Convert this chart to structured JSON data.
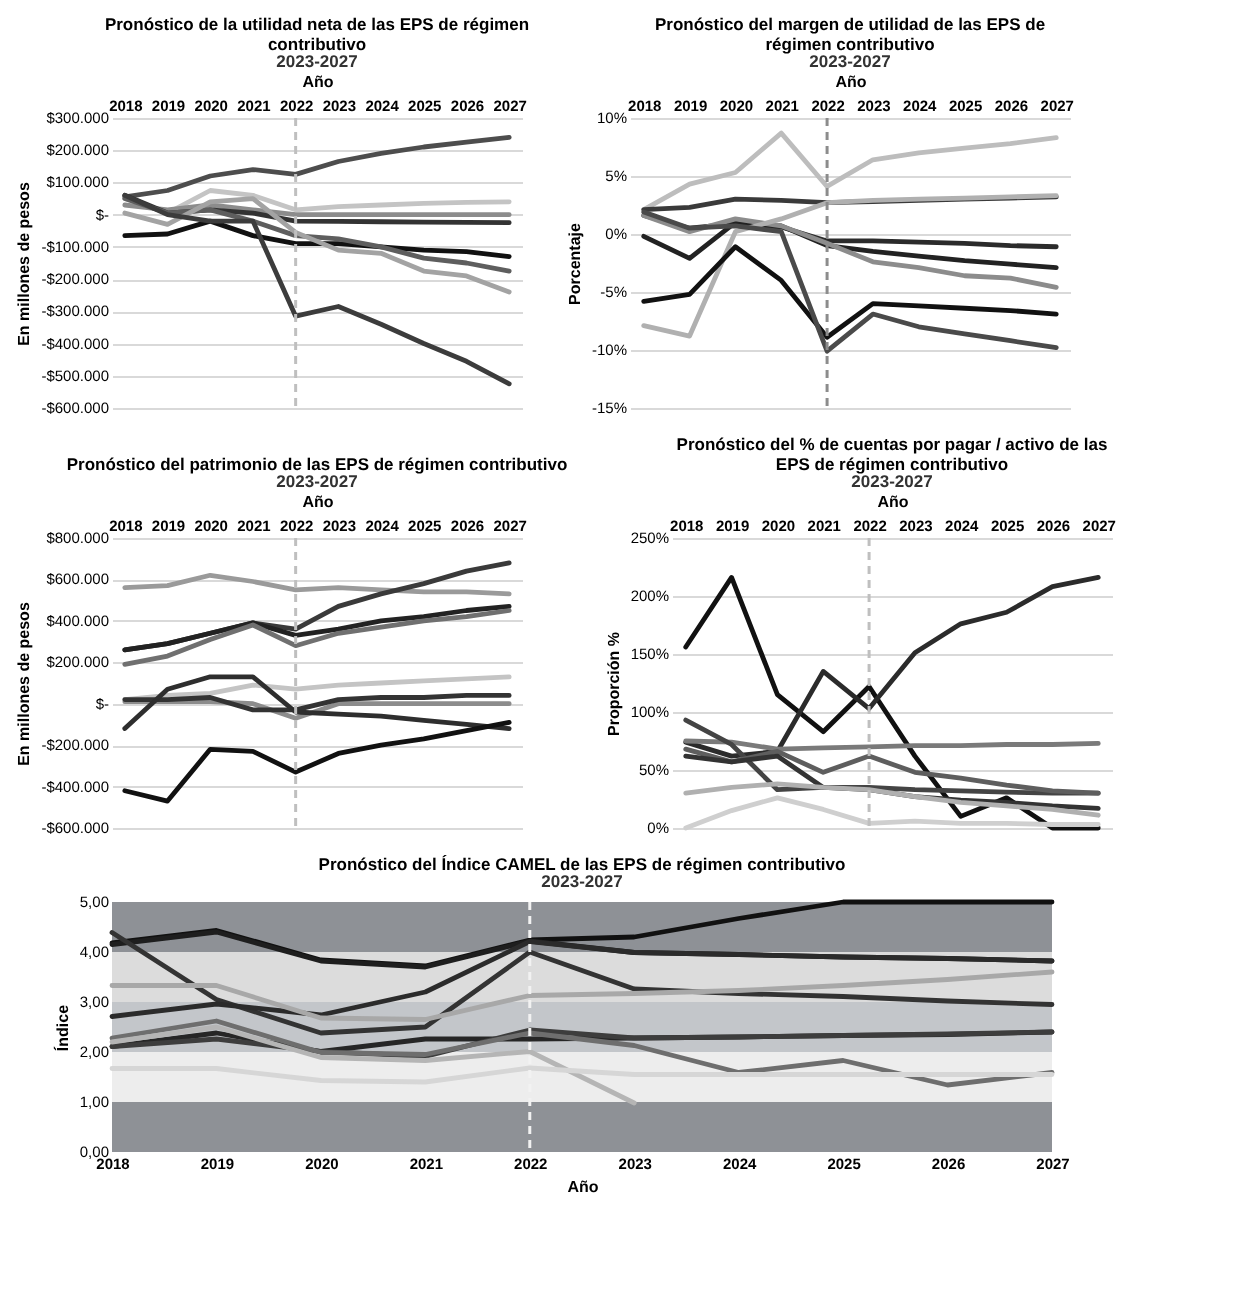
{
  "chart_data": [
    {
      "type": "line",
      "title": "Pronóstico de la utilidad neta de las EPS de régimen contributivo",
      "subtitle": "2023-2027",
      "xlabel": "Año",
      "ylabel": "En millones de pesos",
      "categories": [
        "2018",
        "2019",
        "2020",
        "2021",
        "2022",
        "2023",
        "2024",
        "2025",
        "2026",
        "2027"
      ],
      "ylim": [
        -600000,
        300000
      ],
      "yticks": [
        {
          "value": 300000,
          "label": "$300.000"
        },
        {
          "value": 200000,
          "label": "$200.000"
        },
        {
          "value": 100000,
          "label": "$100.000"
        },
        {
          "value": 0,
          "label": "$-"
        },
        {
          "value": -100000,
          "label": "-$100.000"
        },
        {
          "value": -200000,
          "label": "-$200.000"
        },
        {
          "value": -300000,
          "label": "-$300.000"
        },
        {
          "value": -400000,
          "label": "-$400.000"
        },
        {
          "value": -500000,
          "label": "-$500.000"
        },
        {
          "value": -600000,
          "label": "-$600.000"
        }
      ],
      "grid": "y",
      "ref_lines": [
        {
          "axis": "x",
          "value": "2022",
          "color": "#bfbfbf",
          "line_style": "dashed"
        }
      ],
      "series": [
        {
          "color": "#4d4d4d",
          "values": [
            55000,
            75000,
            120000,
            140000,
            125000,
            165000,
            190000,
            210000,
            225000,
            240000
          ]
        },
        {
          "color": "#c4c4c4",
          "values": [
            50000,
            5000,
            75000,
            60000,
            15000,
            25000,
            30000,
            35000,
            38000,
            40000
          ]
        },
        {
          "color": "#8c8c8c",
          "values": [
            30000,
            15000,
            30000,
            15000,
            0,
            0,
            0,
            0,
            0,
            0
          ]
        },
        {
          "color": "#333333",
          "values": [
            60000,
            5000,
            15000,
            5000,
            -20000,
            -21000,
            -22000,
            -23000,
            -24000,
            -25000
          ]
        },
        {
          "color": "#111111",
          "values": [
            -65000,
            -60000,
            -20000,
            -65000,
            -90000,
            -90000,
            -100000,
            -110000,
            -115000,
            -130000
          ]
        },
        {
          "color": "#5e5e5e",
          "values": [
            50000,
            5000,
            15000,
            -20000,
            -65000,
            -75000,
            -100000,
            -135000,
            -150000,
            -175000
          ]
        },
        {
          "color": "#a3a3a3",
          "values": [
            5000,
            -30000,
            40000,
            50000,
            -55000,
            -110000,
            -120000,
            -175000,
            -190000,
            -240000
          ]
        },
        {
          "color": "#3c3c3c",
          "values": [
            60000,
            0,
            -20000,
            -20000,
            -315000,
            -285000,
            -340000,
            -400000,
            -455000,
            -525000
          ]
        }
      ]
    },
    {
      "type": "line",
      "title": "Pronóstico del margen de utilidad de las EPS de régimen contributivo",
      "subtitle": "2023-2027",
      "xlabel": "Año",
      "ylabel": "Porcentaje",
      "categories": [
        "2018",
        "2019",
        "2020",
        "2021",
        "2022",
        "2023",
        "2024",
        "2025",
        "2026",
        "2027"
      ],
      "ylim": [
        -15,
        10
      ],
      "yticks": [
        {
          "value": 10,
          "label": "10%"
        },
        {
          "value": 5,
          "label": "5%"
        },
        {
          "value": 0,
          "label": "0%"
        },
        {
          "value": -5,
          "label": "-5%"
        },
        {
          "value": -10,
          "label": "-10%"
        },
        {
          "value": -15,
          "label": "-15%"
        }
      ],
      "grid": "y",
      "ref_lines": [
        {
          "axis": "x",
          "value": "2022",
          "color": "#8c8c8c",
          "line_style": "dashed"
        }
      ],
      "series": [
        {
          "color": "#bdbdbd",
          "values": [
            2.1,
            4.3,
            5.3,
            8.7,
            4.1,
            6.4,
            7.0,
            7.4,
            7.8,
            8.3
          ]
        },
        {
          "color": "#3a3a3a",
          "values": [
            2.1,
            2.3,
            3.0,
            2.9,
            2.7,
            2.8,
            2.9,
            3.0,
            3.1,
            3.2
          ]
        },
        {
          "color": "#2b2b2b",
          "values": [
            1.6,
            0.5,
            0.9,
            0.6,
            -0.6,
            -0.6,
            -0.7,
            -0.8,
            -1.0,
            -1.1
          ]
        },
        {
          "color": "#222222",
          "values": [
            -0.2,
            -2.1,
            1.0,
            0.7,
            -1.0,
            -1.5,
            -1.9,
            -2.3,
            -2.6,
            -2.9
          ]
        },
        {
          "color": "#8c8c8c",
          "values": [
            1.6,
            0.2,
            1.3,
            0.7,
            -0.8,
            -2.4,
            -2.9,
            -3.6,
            -3.8,
            -4.6
          ]
        },
        {
          "color": "#b0b0b0",
          "values": [
            -7.9,
            -8.8,
            0.2,
            1.3,
            2.7,
            2.9,
            3.0,
            3.1,
            3.2,
            3.3
          ]
        },
        {
          "color": "#111111",
          "values": [
            -5.8,
            -5.2,
            -1.1,
            -4.0,
            -8.9,
            -6.0,
            -6.2,
            -6.4,
            -6.6,
            -6.9
          ]
        },
        {
          "color": "#4a4a4a",
          "values": [
            1.9,
            0.5,
            0.7,
            0.2,
            -10.1,
            -6.9,
            -8.0,
            -8.6,
            -9.2,
            -9.8
          ]
        }
      ]
    },
    {
      "type": "line",
      "title": "Pronóstico del patrimonio de las EPS de régimen contributivo",
      "subtitle": "2023-2027",
      "xlabel": "Año",
      "ylabel": "En millones de pesos",
      "categories": [
        "2018",
        "2019",
        "2020",
        "2021",
        "2022",
        "2023",
        "2024",
        "2025",
        "2026",
        "2027"
      ],
      "ylim": [
        -600000,
        800000
      ],
      "yticks": [
        {
          "value": 800000,
          "label": "$800.000"
        },
        {
          "value": 600000,
          "label": "$600.000"
        },
        {
          "value": 400000,
          "label": "$400.000"
        },
        {
          "value": 200000,
          "label": "$200.000"
        },
        {
          "value": 0,
          "label": "$-"
        },
        {
          "value": -200000,
          "label": "-$200.000"
        },
        {
          "value": -400000,
          "label": "-$400.000"
        },
        {
          "value": -600000,
          "label": "-$600.000"
        }
      ],
      "grid": "y",
      "ref_lines": [
        {
          "axis": "x",
          "value": "2022",
          "color": "#bfbfbf",
          "line_style": "dashed"
        }
      ],
      "series": [
        {
          "color": "#9a9a9a",
          "values": [
            560000,
            570000,
            620000,
            590000,
            550000,
            560000,
            550000,
            540000,
            540000,
            530000
          ]
        },
        {
          "color": "#3a3a3a",
          "values": [
            260000,
            290000,
            340000,
            390000,
            360000,
            470000,
            530000,
            580000,
            640000,
            680000
          ]
        },
        {
          "color": "#222222",
          "values": [
            260000,
            290000,
            340000,
            390000,
            330000,
            360000,
            400000,
            420000,
            450000,
            470000
          ]
        },
        {
          "color": "#707070",
          "values": [
            190000,
            230000,
            310000,
            380000,
            280000,
            340000,
            370000,
            400000,
            420000,
            450000
          ]
        },
        {
          "color": "#c4c4c4",
          "values": [
            20000,
            40000,
            50000,
            90000,
            70000,
            90000,
            100000,
            110000,
            120000,
            130000
          ]
        },
        {
          "color": "#8c8c8c",
          "values": [
            10000,
            10000,
            10000,
            0,
            -70000,
            0,
            0,
            0,
            0,
            0
          ]
        },
        {
          "color": "#333333",
          "values": [
            20000,
            20000,
            30000,
            -30000,
            -30000,
            20000,
            30000,
            30000,
            40000,
            40000
          ]
        },
        {
          "color": "#2e2e2e",
          "values": [
            -120000,
            70000,
            130000,
            130000,
            -40000,
            -50000,
            -60000,
            -80000,
            -100000,
            -120000
          ]
        },
        {
          "color": "#111111",
          "values": [
            -420000,
            -470000,
            -220000,
            -230000,
            -330000,
            -240000,
            -200000,
            -170000,
            -130000,
            -90000
          ]
        }
      ]
    },
    {
      "type": "line",
      "title": "Pronóstico del % de cuentas por pagar / activo de las EPS de régimen contributivo",
      "subtitle": "2023-2027",
      "xlabel": "Año",
      "ylabel": "Proporción %",
      "categories": [
        "2018",
        "2019",
        "2020",
        "2021",
        "2022",
        "2023",
        "2024",
        "2025",
        "2026",
        "2027"
      ],
      "ylim": [
        0,
        250
      ],
      "yticks": [
        {
          "value": 250,
          "label": "250%"
        },
        {
          "value": 200,
          "label": "200%"
        },
        {
          "value": 150,
          "label": "150%"
        },
        {
          "value": 100,
          "label": "100%"
        },
        {
          "value": 50,
          "label": "50%"
        },
        {
          "value": 0,
          "label": "0%"
        }
      ],
      "grid": "y",
      "ref_lines": [
        {
          "axis": "x",
          "value": "2022",
          "color": "#bfbfbf",
          "line_style": "dashed"
        }
      ],
      "series": [
        {
          "color": "#111111",
          "values": [
            156,
            216,
            115,
            83,
            122,
            62,
            10,
            26,
            0,
            0
          ]
        },
        {
          "color": "#2b2b2b",
          "values": [
            74,
            62,
            66,
            135,
            103,
            151,
            176,
            186,
            208,
            216
          ]
        },
        {
          "color": "#7a7a7a",
          "values": [
            75,
            74,
            68,
            69,
            70,
            71,
            71,
            72,
            72,
            73
          ]
        },
        {
          "color": "#444444",
          "values": [
            93,
            72,
            33,
            35,
            35,
            33,
            32,
            31,
            30,
            30
          ]
        },
        {
          "color": "#5e5e5e",
          "values": [
            68,
            57,
            66,
            48,
            62,
            48,
            43,
            37,
            32,
            30
          ]
        },
        {
          "color": "#333333",
          "values": [
            62,
            57,
            62,
            35,
            33,
            27,
            24,
            22,
            19,
            17
          ]
        },
        {
          "color": "#b0b0b0",
          "values": [
            30,
            35,
            38,
            35,
            33,
            27,
            22,
            19,
            16,
            11
          ]
        },
        {
          "color": "#cfcfcf",
          "values": [
            0,
            15,
            26,
            16,
            4,
            6,
            4,
            4,
            3,
            3
          ]
        }
      ]
    },
    {
      "type": "line",
      "title": "Pronóstico del Índice CAMEL de las EPS de régimen contributivo",
      "subtitle": "2023-2027",
      "xlabel": "Año",
      "ylabel": "Índice",
      "categories": [
        "2018",
        "2019",
        "2020",
        "2021",
        "2022",
        "2023",
        "2024",
        "2025",
        "2026",
        "2027"
      ],
      "ylim": [
        0,
        5
      ],
      "yticks": [
        {
          "value": 0,
          "label": "0,00"
        },
        {
          "value": 1,
          "label": "1,00"
        },
        {
          "value": 2,
          "label": "2,00"
        },
        {
          "value": 3,
          "label": "3,00"
        },
        {
          "value": 4,
          "label": "4,00"
        },
        {
          "value": 5,
          "label": "5,00"
        }
      ],
      "bands": [
        {
          "axis": "y",
          "from": 4,
          "to": 5,
          "color": "#8e9196"
        },
        {
          "axis": "y",
          "from": 3,
          "to": 4,
          "color": "#dcdcdc"
        },
        {
          "axis": "y",
          "from": 2,
          "to": 3,
          "color": "#c3c6ca"
        },
        {
          "axis": "y",
          "from": 1,
          "to": 2,
          "color": "#ededed"
        },
        {
          "axis": "y",
          "from": 0,
          "to": 1,
          "color": "#8e9196"
        }
      ],
      "ref_lines": [
        {
          "axis": "x",
          "value": "2022",
          "color": "#f2f2f2",
          "line_style": "dashed"
        }
      ],
      "series": [
        {
          "color": "#111111",
          "values": [
            4.18,
            4.43,
            3.84,
            3.72,
            4.24,
            4.3,
            4.67,
            5.0,
            5.0,
            5.0
          ]
        },
        {
          "color": "#1e1e1e",
          "values": [
            4.15,
            4.4,
            3.82,
            3.7,
            4.22,
            3.99,
            3.95,
            3.9,
            3.87,
            3.82
          ]
        },
        {
          "color": "#333333",
          "values": [
            4.39,
            3.05,
            2.38,
            2.5,
            4.0,
            3.26,
            3.17,
            3.11,
            3.02,
            2.95
          ]
        },
        {
          "color": "#2b2b2b",
          "values": [
            2.71,
            2.96,
            2.74,
            3.2,
            4.21,
            3.99,
            3.95,
            3.9,
            3.87,
            3.82
          ]
        },
        {
          "color": "#a8a8a8",
          "values": [
            3.33,
            3.33,
            2.68,
            2.65,
            3.13,
            3.17,
            3.23,
            3.33,
            3.45,
            3.6
          ]
        },
        {
          "color": "#262626",
          "values": [
            2.11,
            2.38,
            2.01,
            2.26,
            2.26,
            2.28,
            2.3,
            2.33,
            2.35,
            2.4
          ]
        },
        {
          "color": "#3d3d3d",
          "values": [
            2.11,
            2.26,
            2.01,
            1.91,
            2.44,
            2.28,
            2.3,
            2.33,
            2.36,
            2.4
          ]
        },
        {
          "color": "#6e6e6e",
          "values": [
            2.28,
            2.62,
            1.99,
            1.95,
            2.38,
            2.13,
            1.59,
            1.83,
            1.34,
            1.59
          ]
        },
        {
          "color": "#b5b5b5",
          "values": [
            2.2,
            2.5,
            1.89,
            1.83,
            2.01,
            0.98,
            null,
            null,
            null,
            null
          ]
        },
        {
          "color": "#d6d6d6",
          "values": [
            1.67,
            1.67,
            1.43,
            1.4,
            1.68,
            1.55,
            1.55,
            1.55,
            1.55,
            1.55
          ]
        }
      ]
    }
  ]
}
